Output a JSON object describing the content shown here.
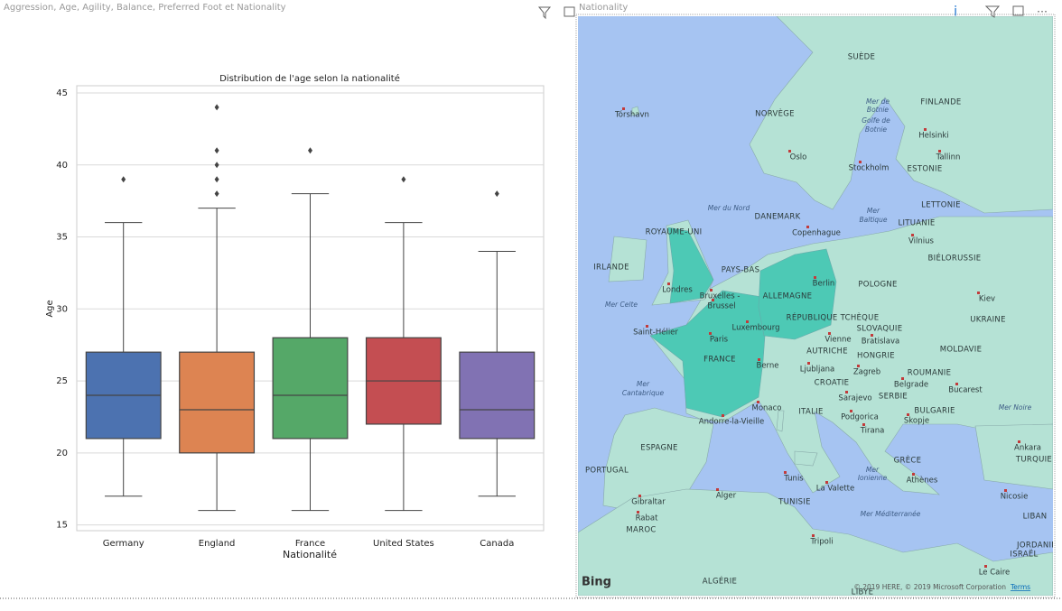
{
  "left_panel": {
    "title": "Aggression, Age, Agility, Balance, Preferred Foot et Nationality"
  },
  "chart_data": {
    "type": "box",
    "title": "Distribution de l'age selon la nationalité",
    "x_label": "Nationalité",
    "y_label": "Age",
    "categories": [
      "Germany",
      "England",
      "France",
      "United States",
      "Canada"
    ],
    "colors": [
      "#4c72b0",
      "#dd8452",
      "#55a868",
      "#c44e52",
      "#8172b3"
    ],
    "boxes": [
      {
        "min": 17,
        "q1": 21,
        "median": 24,
        "q3": 27,
        "max": 36,
        "outliers": [
          39
        ]
      },
      {
        "min": 16,
        "q1": 20,
        "median": 23,
        "q3": 27,
        "max": 37,
        "outliers": [
          38,
          39,
          40,
          41,
          44
        ]
      },
      {
        "min": 16,
        "q1": 21,
        "median": 24,
        "q3": 28,
        "max": 38,
        "outliers": [
          41
        ]
      },
      {
        "min": 16,
        "q1": 22,
        "median": 25,
        "q3": 28,
        "max": 36,
        "outliers": [
          39
        ]
      },
      {
        "min": 17,
        "q1": 21,
        "median": 23,
        "q3": 27,
        "max": 34,
        "outliers": [
          38
        ]
      }
    ],
    "ylim": [
      14.6,
      45.5
    ],
    "yticks": [
      15,
      20,
      25,
      30,
      35,
      40,
      45
    ],
    "grid": true
  },
  "right_panel": {
    "title": "Nationality",
    "countries": [
      "SUÈDE",
      "NORVÈGE",
      "FINLANDE",
      "ESTONIE",
      "DANEMARK",
      "LETTONIE",
      "LITUANIE",
      "ROYAUME-UNI",
      "BIÉLORUSSIE",
      "IRLANDE",
      "PAYS-BAS",
      "POLOGNE",
      "ALLEMAGNE",
      "RÉPUBLIQUE TCHÈQUE",
      "UKRAINE",
      "SLOVAQUIE",
      "AUTRICHE",
      "HONGRIE",
      "MOLDAVIE",
      "FRANCE",
      "ROUMANIE",
      "CROATIE",
      "SERBIE",
      "ITALIE",
      "BULGARIE",
      "ESPAGNE",
      "GRÈCE",
      "TURQUIE",
      "PORTUGAL",
      "TUNISIE",
      "LIBAN",
      "MAROC",
      "JORDANIE",
      "ISRAËL",
      "ALGÉRIE",
      "LIBYE"
    ],
    "cities": [
      "Tórshavn",
      "Helsinki",
      "Oslo",
      "Stockholm",
      "Tallinn",
      "Copenhague",
      "Vilnius",
      "Londres",
      "Bruxelles -",
      "Brussel",
      "Berlin",
      "Kiev",
      "Luxembourg",
      "Saint-Hélier",
      "Paris",
      "Bratislava",
      "Vienne",
      "Berne",
      "Ljubljana",
      "Zagreb",
      "Belgrade",
      "Bucarest",
      "Sarajevo",
      "Monaco",
      "Andorre-la-Vieille",
      "Podgorica",
      "Skopje",
      "Tirana",
      "Ankara",
      "Tunis",
      "Athènes",
      "La Valette",
      "Alger",
      "Nicosie",
      "Gibraltar",
      "Rabat",
      "Tripoli",
      "Le Caire"
    ],
    "seas": [
      "Mer de",
      "Botnie",
      "Golfe de",
      "Botnie",
      "Mer du Nord",
      "Mer",
      "Baltique",
      "Mer Celte",
      "Mer",
      "Cantabrique",
      "Mer Noire",
      "Mer",
      "Ionienne",
      "Mer Méditerranée"
    ],
    "logo": "Bing",
    "attribution": "© 2019 HERE, © 2019 Microsoft Corporation",
    "terms": "Terms"
  }
}
